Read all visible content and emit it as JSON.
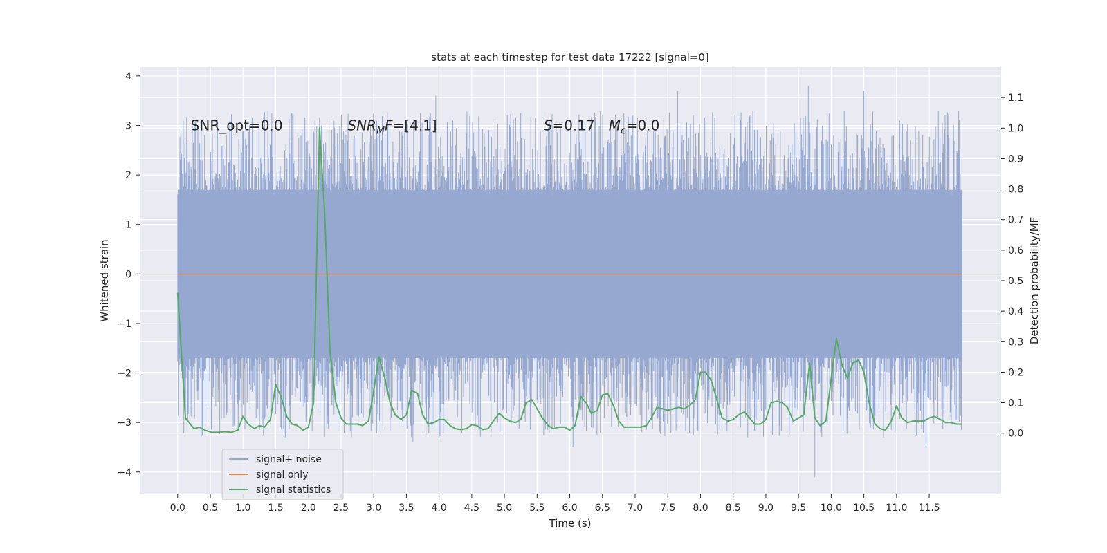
{
  "chart_data": {
    "type": "line",
    "title": "stats at each timestep for test data 17222 [signal=0]",
    "xlabel": "Time (s)",
    "ylabel": "Whitened strain",
    "ylabel_right": "Detection probability/MF",
    "xlim": [
      -0.58,
      12.6
    ],
    "ylim": [
      -4.45,
      4.18
    ],
    "ylim_right": [
      -0.2,
      1.2
    ],
    "x_ticks": [
      0.0,
      0.5,
      1.0,
      1.5,
      2.0,
      2.5,
      3.0,
      3.5,
      4.0,
      4.5,
      5.0,
      5.5,
      6.0,
      6.5,
      7.0,
      7.5,
      8.0,
      8.5,
      9.0,
      9.5,
      10.0,
      10.5,
      11.0,
      11.5
    ],
    "x_tick_labels": [
      "0.0",
      "0.5",
      "1.0",
      "1.5",
      "2.0",
      "2.5",
      "3.0",
      "3.5",
      "4.0",
      "4.5",
      "5.0",
      "5.5",
      "6.0",
      "6.5",
      "7.0",
      "7.5",
      "8.0",
      "8.5",
      "9.0",
      "9.5",
      "10.0",
      "10.5",
      "11.0",
      "11.5"
    ],
    "y_ticks": [
      -4,
      -3,
      -2,
      -1,
      0,
      1,
      2,
      3,
      4
    ],
    "y_tick_labels": [
      "−4",
      "−3",
      "−2",
      "−1",
      "0",
      "1",
      "2",
      "3",
      "4"
    ],
    "y_ticks_right": [
      0.0,
      0.1,
      0.2,
      0.3,
      0.4,
      0.5,
      0.6,
      0.7,
      0.8,
      0.9,
      1.0,
      1.1
    ],
    "y_tick_labels_right": [
      "0.0",
      "0.1",
      "0.2",
      "0.3",
      "0.4",
      "0.5",
      "0.6",
      "0.7",
      "0.8",
      "0.9",
      "1.0",
      "1.1"
    ],
    "grid": true,
    "legend_position": "lower-left",
    "annotations": [
      {
        "id": "snr-opt",
        "text": "SNR_opt=0.0",
        "x": 0.2,
        "y": 3.0
      },
      {
        "id": "snr-mf",
        "base": "SNR",
        "sub": "M",
        "rest": "F=[4.1]",
        "x": 2.6,
        "y": 3.0
      },
      {
        "id": "s-mc",
        "s_label": "S",
        "s_rest": "=0.17",
        "m_base": "M",
        "m_sub": "c",
        "m_rest": "=0.0",
        "x": 5.6,
        "y": 3.0
      }
    ],
    "colors": {
      "noise": "#96a8d0",
      "signal": "#dd8452",
      "stats": "#55a868",
      "background": "#eaeaf2",
      "grid": "#ffffff"
    },
    "noise_envelope": {
      "x_range": [
        0.0,
        12.0
      ],
      "core_band": [
        -1.7,
        1.7
      ],
      "notable_peaks_up": [
        [
          1.1,
          2.8
        ],
        [
          2.1,
          3.1
        ],
        [
          2.2,
          3.0
        ],
        [
          3.95,
          3.6
        ],
        [
          7.65,
          3.7
        ],
        [
          9.65,
          3.8
        ],
        [
          10.2,
          3.3
        ],
        [
          10.5,
          3.7
        ],
        [
          11.95,
          3.3
        ]
      ],
      "notable_peaks_down": [
        [
          1.65,
          -3.3
        ],
        [
          3.6,
          -3.4
        ],
        [
          4.0,
          -3.3
        ],
        [
          6.05,
          -3.5
        ],
        [
          9.75,
          -4.1
        ],
        [
          10.8,
          -3.3
        ],
        [
          11.45,
          -3.5
        ]
      ]
    },
    "series": [
      {
        "name": "signal+ noise",
        "axis": "left",
        "note_values": "dense whitened strain noise drawn as envelope",
        "x": [],
        "values": []
      },
      {
        "name": "signal only",
        "axis": "left",
        "x": [
          0.0,
          12.0
        ],
        "values": [
          0.0,
          0.0
        ]
      },
      {
        "name": "signal statistics",
        "axis": "right",
        "x": [
          0.0,
          0.12,
          0.25,
          0.33,
          0.42,
          0.52,
          0.62,
          0.72,
          0.82,
          0.92,
          1.0,
          1.08,
          1.17,
          1.25,
          1.33,
          1.42,
          1.5,
          1.58,
          1.67,
          1.75,
          1.83,
          1.92,
          2.0,
          2.08,
          2.17,
          2.25,
          2.33,
          2.42,
          2.5,
          2.58,
          2.67,
          2.75,
          2.83,
          2.92,
          3.0,
          3.08,
          3.17,
          3.25,
          3.33,
          3.42,
          3.5,
          3.58,
          3.67,
          3.75,
          3.83,
          3.92,
          4.0,
          4.08,
          4.17,
          4.25,
          4.33,
          4.42,
          4.5,
          4.58,
          4.67,
          4.75,
          4.83,
          4.92,
          5.0,
          5.08,
          5.17,
          5.25,
          5.33,
          5.42,
          5.5,
          5.58,
          5.67,
          5.75,
          5.83,
          5.92,
          6.0,
          6.08,
          6.17,
          6.25,
          6.33,
          6.42,
          6.5,
          6.58,
          6.67,
          6.75,
          6.83,
          6.92,
          7.0,
          7.08,
          7.17,
          7.25,
          7.33,
          7.42,
          7.5,
          7.58,
          7.67,
          7.75,
          7.83,
          7.92,
          8.0,
          8.08,
          8.17,
          8.25,
          8.33,
          8.42,
          8.5,
          8.58,
          8.67,
          8.75,
          8.83,
          8.92,
          9.0,
          9.08,
          9.17,
          9.25,
          9.33,
          9.42,
          9.5,
          9.58,
          9.67,
          9.75,
          9.83,
          9.92,
          10.0,
          10.08,
          10.17,
          10.25,
          10.33,
          10.42,
          10.5,
          10.58,
          10.67,
          10.75,
          10.83,
          10.92,
          11.0,
          11.08,
          11.17,
          11.25,
          11.33,
          11.42,
          11.5,
          11.58,
          11.67,
          11.75,
          11.83,
          11.92,
          12.0
        ],
        "values": [
          0.46,
          0.05,
          0.015,
          0.02,
          0.01,
          0.003,
          0.003,
          0.005,
          0.003,
          0.01,
          0.055,
          0.03,
          0.015,
          0.025,
          0.02,
          0.045,
          0.16,
          0.12,
          0.055,
          0.03,
          0.025,
          0.01,
          0.02,
          0.1,
          1.0,
          0.72,
          0.27,
          0.1,
          0.05,
          0.03,
          0.03,
          0.03,
          0.025,
          0.04,
          0.14,
          0.25,
          0.18,
          0.1,
          0.06,
          0.045,
          0.06,
          0.14,
          0.13,
          0.06,
          0.03,
          0.035,
          0.045,
          0.045,
          0.025,
          0.015,
          0.012,
          0.015,
          0.028,
          0.025,
          0.012,
          0.015,
          0.04,
          0.065,
          0.05,
          0.04,
          0.035,
          0.045,
          0.1,
          0.11,
          0.08,
          0.05,
          0.025,
          0.015,
          0.02,
          0.02,
          0.01,
          0.025,
          0.12,
          0.1,
          0.065,
          0.075,
          0.125,
          0.13,
          0.09,
          0.04,
          0.02,
          0.02,
          0.02,
          0.02,
          0.025,
          0.05,
          0.085,
          0.08,
          0.075,
          0.08,
          0.085,
          0.08,
          0.09,
          0.11,
          0.2,
          0.2,
          0.17,
          0.11,
          0.05,
          0.04,
          0.045,
          0.06,
          0.07,
          0.05,
          0.03,
          0.03,
          0.045,
          0.1,
          0.105,
          0.1,
          0.085,
          0.04,
          0.05,
          0.06,
          0.23,
          0.05,
          0.025,
          0.04,
          0.18,
          0.31,
          0.22,
          0.18,
          0.23,
          0.24,
          0.2,
          0.1,
          0.03,
          0.015,
          0.01,
          0.04,
          0.09,
          0.05,
          0.035,
          0.04,
          0.04,
          0.04,
          0.05,
          0.055,
          0.045,
          0.035,
          0.035,
          0.03,
          0.03
        ]
      }
    ]
  }
}
